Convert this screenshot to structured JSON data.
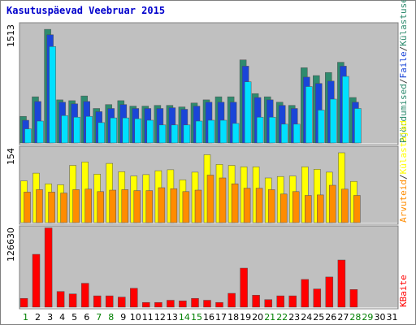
{
  "chart_data": {
    "type": "bar",
    "title": "Kasutuspäevad Veebruar 2015",
    "categories": [
      "1",
      "2",
      "3",
      "4",
      "5",
      "6",
      "7",
      "8",
      "9",
      "10",
      "11",
      "12",
      "13",
      "14",
      "15",
      "16",
      "17",
      "18",
      "19",
      "20",
      "21",
      "22",
      "23",
      "24",
      "25",
      "26",
      "27",
      "28",
      "29",
      "30",
      "31"
    ],
    "weekend_days": [
      "1",
      "7",
      "8",
      "14",
      "15",
      "21",
      "22",
      "28",
      "29"
    ],
    "panels": [
      {
        "id": "top",
        "ymax_label": "1513",
        "ylim": [
          0,
          1513
        ],
        "series": [
          {
            "name": "Külastused",
            "color": "#2e8b6e",
            "values": [
              340,
              590,
              1450,
              550,
              540,
              600,
              440,
              490,
              540,
              470,
              470,
              480,
              480,
              460,
              510,
              550,
              590,
              590,
              1060,
              630,
              590,
              520,
              480,
              960,
              860,
              900,
              1030,
              580,
              0,
              0,
              0
            ]
          },
          {
            "name": "Failid",
            "color": "#1a45d8",
            "values": [
              290,
              530,
              1380,
              520,
              500,
              530,
              400,
              440,
              490,
              440,
              440,
              440,
              450,
              430,
              470,
              520,
              520,
              520,
              980,
              580,
              550,
              480,
              440,
              840,
              760,
              790,
              980,
              520,
              0,
              0,
              0
            ]
          },
          {
            "name": "Pöördumised",
            "color": "#00e0ff",
            "values": [
              180,
              280,
              1230,
              350,
              330,
              340,
              260,
              320,
              320,
              310,
              290,
              230,
              230,
              230,
              280,
              290,
              290,
              250,
              780,
              330,
              330,
              240,
              240,
              720,
              420,
              560,
              850,
              440,
              0,
              0,
              0
            ]
          }
        ]
      },
      {
        "id": "middle",
        "ymax_label": "154",
        "ylim": [
          0,
          154
        ],
        "series": [
          {
            "name": "Külastajad",
            "color": "#ffff00",
            "values": [
              86,
              102,
              80,
              78,
              118,
              125,
              100,
              122,
              105,
              96,
              99,
              107,
              109,
              88,
              104,
              140,
              120,
              118,
              115,
              115,
              92,
              95,
              96,
              115,
              110,
              104,
              144,
              85,
              0,
              0,
              0
            ]
          },
          {
            "name": "Arvuteid",
            "color": "#ff8c00",
            "values": [
              63,
              68,
              63,
              61,
              68,
              69,
              64,
              67,
              68,
              66,
              66,
              72,
              70,
              64,
              67,
              98,
              92,
              80,
              71,
              71,
              68,
              59,
              64,
              56,
              57,
              77,
              69,
              56,
              0,
              0,
              0
            ]
          }
        ]
      },
      {
        "id": "bottom",
        "ymax_label": "126630",
        "ylim": [
          0,
          126630
        ],
        "series": [
          {
            "name": "KBaite",
            "color": "#ff0000",
            "values": [
              14000,
              84000,
              126000,
              25000,
              21000,
              38000,
              18000,
              18000,
              16000,
              30000,
              7500,
              7500,
              11000,
              10000,
              14000,
              11000,
              7500,
              22000,
              62000,
              19000,
              12000,
              18000,
              18000,
              44000,
              29000,
              48000,
              75000,
              28000,
              0,
              0,
              0
            ]
          }
        ]
      }
    ],
    "legend": {
      "top": [
        "Pöördumised",
        "/",
        "Faile",
        "/",
        "Külastused"
      ],
      "middle": [
        "Arvuteid",
        "/",
        "Külastajad"
      ],
      "bottom": [
        "KBaite"
      ]
    }
  },
  "colors": {
    "background": "#c0c0c0",
    "frame": "#808080",
    "title": "#0000cc",
    "weekday_label": "#000000",
    "weekend_label": "#008000",
    "legend_hits": "#2e8b6e",
    "legend_files": "#1a45d8",
    "legend_visits": "#2e8b6e",
    "legend_sites": "#ff8c00",
    "legend_visitors": "#ffff00",
    "legend_kbytes": "#ff0000"
  }
}
